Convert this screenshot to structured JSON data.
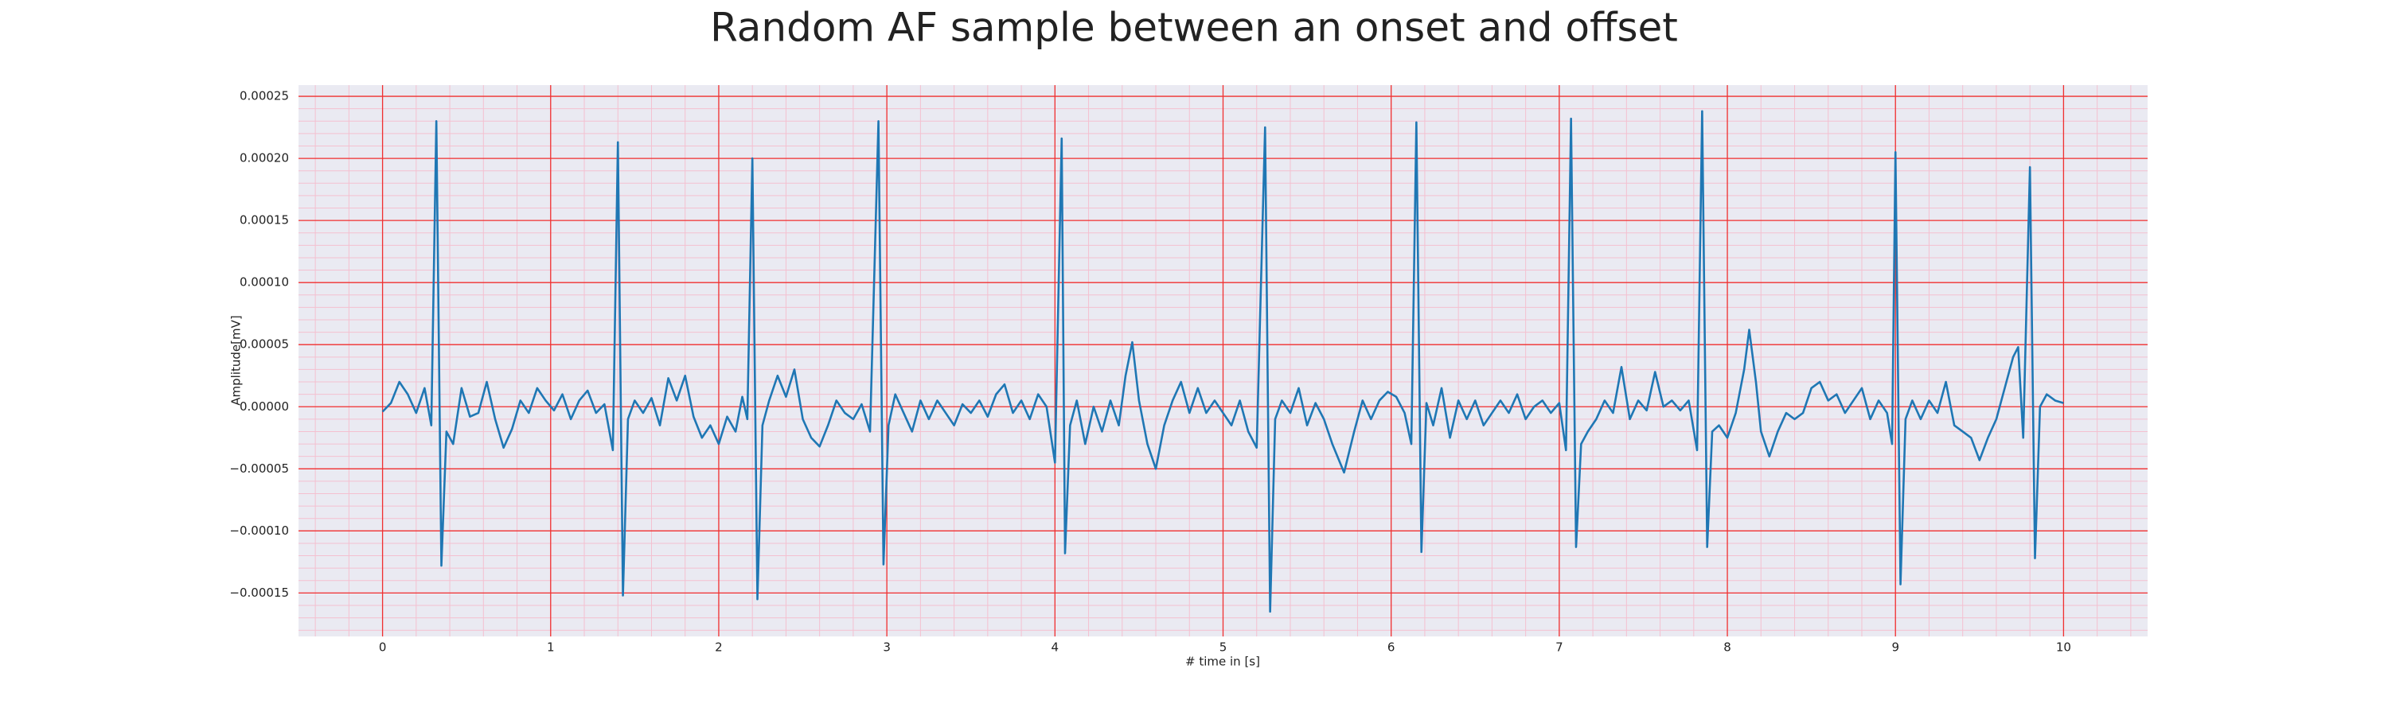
{
  "chart_data": {
    "type": "line",
    "title": "Random AF sample between an onset and offset",
    "xlabel": "# time in [s]",
    "ylabel": "Amplitude[mV]",
    "color": "#1f77b4",
    "grid": true,
    "xlim": [
      -0.5,
      10.5
    ],
    "xticks": [
      0,
      1,
      2,
      3,
      4,
      5,
      6,
      7,
      8,
      9,
      10
    ],
    "ylim": [
      -0.000185,
      0.000259
    ],
    "yticks": [
      {
        "value": -0.00015,
        "label": "−0.00015"
      },
      {
        "value": -0.0001,
        "label": "−0.00010"
      },
      {
        "value": -5e-05,
        "label": "−0.00005"
      },
      {
        "value": 0,
        "label": "0.00000"
      },
      {
        "value": 5e-05,
        "label": "0.00005"
      },
      {
        "value": 0.0001,
        "label": "0.00010"
      },
      {
        "value": 0.00015,
        "label": "0.00015"
      },
      {
        "value": 0.0002,
        "label": "0.00020"
      },
      {
        "value": 0.00025,
        "label": "0.00025"
      }
    ],
    "x": [
      0,
      0.05,
      0.1,
      0.15,
      0.2,
      0.25,
      0.29,
      0.32,
      0.35,
      0.38,
      0.42,
      0.47,
      0.52,
      0.57,
      0.62,
      0.67,
      0.72,
      0.77,
      0.82,
      0.87,
      0.92,
      0.97,
      1.02,
      1.07,
      1.12,
      1.17,
      1.22,
      1.27,
      1.32,
      1.37,
      1.4,
      1.43,
      1.46,
      1.5,
      1.55,
      1.6,
      1.65,
      1.7,
      1.75,
      1.8,
      1.85,
      1.9,
      1.95,
      2.0,
      2.05,
      2.1,
      2.14,
      2.17,
      2.2,
      2.23,
      2.26,
      2.3,
      2.35,
      2.4,
      2.45,
      2.5,
      2.55,
      2.6,
      2.65,
      2.7,
      2.75,
      2.8,
      2.85,
      2.9,
      2.95,
      2.98,
      3.01,
      3.05,
      3.1,
      3.15,
      3.2,
      3.25,
      3.3,
      3.35,
      3.4,
      3.45,
      3.5,
      3.55,
      3.6,
      3.65,
      3.7,
      3.75,
      3.8,
      3.85,
      3.9,
      3.95,
      4.0,
      4.04,
      4.06,
      4.09,
      4.13,
      4.18,
      4.23,
      4.28,
      4.33,
      4.38,
      4.42,
      4.46,
      4.5,
      4.55,
      4.6,
      4.65,
      4.7,
      4.75,
      4.8,
      4.85,
      4.9,
      4.95,
      5.0,
      5.05,
      5.1,
      5.15,
      5.2,
      5.25,
      5.28,
      5.31,
      5.35,
      5.4,
      5.45,
      5.5,
      5.55,
      5.6,
      5.65,
      5.72,
      5.78,
      5.83,
      5.88,
      5.93,
      5.98,
      6.03,
      6.08,
      6.12,
      6.15,
      6.18,
      6.21,
      6.25,
      6.3,
      6.35,
      6.4,
      6.45,
      6.5,
      6.55,
      6.6,
      6.65,
      6.7,
      6.75,
      6.8,
      6.85,
      6.9,
      6.95,
      7.0,
      7.04,
      7.07,
      7.1,
      7.13,
      7.17,
      7.22,
      7.27,
      7.32,
      7.37,
      7.42,
      7.47,
      7.52,
      7.57,
      7.62,
      7.67,
      7.72,
      7.77,
      7.82,
      7.85,
      7.88,
      7.91,
      7.95,
      8.0,
      8.05,
      8.1,
      8.13,
      8.17,
      8.2,
      8.25,
      8.3,
      8.35,
      8.4,
      8.45,
      8.5,
      8.55,
      8.6,
      8.65,
      8.7,
      8.75,
      8.8,
      8.85,
      8.9,
      8.95,
      8.98,
      9.0,
      9.03,
      9.06,
      9.1,
      9.15,
      9.2,
      9.25,
      9.3,
      9.35,
      9.4,
      9.45,
      9.5,
      9.55,
      9.6,
      9.65,
      9.7,
      9.73,
      9.76,
      9.8,
      9.83,
      9.86,
      9.9,
      9.95,
      10.0
    ],
    "values": [
      -4e-06,
      3e-06,
      2e-05,
      1e-05,
      -5e-06,
      1.5e-05,
      -1.5e-05,
      0.00023,
      -0.000128,
      -2e-05,
      -3e-05,
      1.5e-05,
      -8e-06,
      -5e-06,
      2e-05,
      -1e-05,
      -3.3e-05,
      -1.8e-05,
      5e-06,
      -5e-06,
      1.5e-05,
      5e-06,
      -3e-06,
      1e-05,
      -1e-05,
      5e-06,
      1.3e-05,
      -5e-06,
      2e-06,
      -3.5e-05,
      0.000213,
      -0.000152,
      -1e-05,
      5e-06,
      -5e-06,
      7e-06,
      -1.5e-05,
      2.3e-05,
      5e-06,
      2.5e-05,
      -8e-06,
      -2.5e-05,
      -1.5e-05,
      -3e-05,
      -8e-06,
      -2e-05,
      8e-06,
      -1e-05,
      0.0002,
      -0.000155,
      -1.5e-05,
      5e-06,
      2.5e-05,
      8e-06,
      3e-05,
      -1e-05,
      -2.5e-05,
      -3.2e-05,
      -1.5e-05,
      5e-06,
      -5e-06,
      -1e-05,
      2e-06,
      -2e-05,
      0.00023,
      -0.000127,
      -1.5e-05,
      1e-05,
      -5e-06,
      -2e-05,
      5e-06,
      -1e-05,
      5e-06,
      -5e-06,
      -1.5e-05,
      2e-06,
      -5e-06,
      5e-06,
      -8e-06,
      1e-05,
      1.8e-05,
      -5e-06,
      5e-06,
      -1e-05,
      1e-05,
      0.0,
      -4.5e-05,
      0.000216,
      -0.000118,
      -1.5e-05,
      5e-06,
      -3e-05,
      0.0,
      -2e-05,
      5e-06,
      -1.5e-05,
      2.5e-05,
      5.2e-05,
      5e-06,
      -3e-05,
      -5e-05,
      -1.5e-05,
      5e-06,
      2e-05,
      -5e-06,
      1.5e-05,
      -5e-06,
      5e-06,
      -5e-06,
      -1.5e-05,
      5e-06,
      -2e-05,
      -3.3e-05,
      0.000225,
      -0.000165,
      -1e-05,
      5e-06,
      -5e-06,
      1.5e-05,
      -1.5e-05,
      3e-06,
      -1e-05,
      -3e-05,
      -5.3e-05,
      -2e-05,
      5e-06,
      -1e-05,
      5e-06,
      1.2e-05,
      8e-06,
      -5e-06,
      -3e-05,
      0.000229,
      -0.000117,
      3e-06,
      -1.5e-05,
      1.5e-05,
      -2.5e-05,
      5e-06,
      -1e-05,
      5e-06,
      -1.5e-05,
      -5e-06,
      5e-06,
      -5e-06,
      1e-05,
      -1e-05,
      0.0,
      5e-06,
      -5e-06,
      3e-06,
      -3.5e-05,
      0.000232,
      -0.000113,
      -3e-05,
      -2e-05,
      -1e-05,
      5e-06,
      -5e-06,
      3.2e-05,
      -1e-05,
      5e-06,
      -3e-06,
      2.8e-05,
      0.0,
      5e-06,
      -3e-06,
      5e-06,
      -3.5e-05,
      0.000238,
      -0.000113,
      -2e-05,
      -1.5e-05,
      -2.5e-05,
      -5e-06,
      3e-05,
      6.2e-05,
      2e-05,
      -2e-05,
      -4e-05,
      -2e-05,
      -5e-06,
      -1e-05,
      -5e-06,
      1.5e-05,
      2e-05,
      5e-06,
      1e-05,
      -5e-06,
      5e-06,
      1.5e-05,
      -1e-05,
      5e-06,
      -5e-06,
      -3e-05,
      0.000205,
      -0.000143,
      -1e-05,
      5e-06,
      -1e-05,
      5e-06,
      -5e-06,
      2e-05,
      -1.5e-05,
      -2e-05,
      -2.5e-05,
      -4.3e-05,
      -2.5e-05,
      -1e-05,
      1.5e-05,
      4e-05,
      4.8e-05,
      -2.5e-05,
      0.000193,
      -0.000122,
      0.0,
      1e-05,
      5e-06,
      3e-06
    ]
  }
}
